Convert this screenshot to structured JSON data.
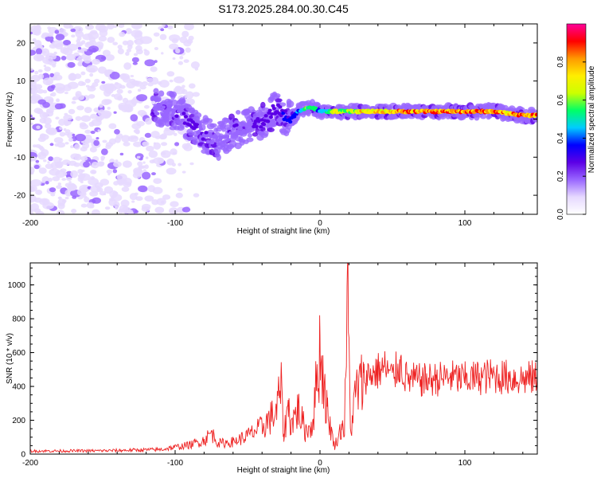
{
  "title": "S173.2025.284.00.30.C45",
  "chart_data": [
    {
      "type": "heatmap",
      "xlabel": "Height of straight line (km)",
      "ylabel": "Frequency (Hz)",
      "xlim": [
        -200,
        150
      ],
      "ylim": [
        -25,
        25
      ],
      "xticks": [
        -200,
        -100,
        0,
        100
      ],
      "yticks": [
        -20,
        -10,
        0,
        10,
        20
      ],
      "colorbar": {
        "label": "Normalized spectral amplitude",
        "range": [
          0,
          1
        ],
        "ticks": [
          "0.0",
          "0.2",
          "0.4",
          "0.6",
          "0.8"
        ],
        "colormap": [
          "#ffffff",
          "#e6d9ff",
          "#9966ff",
          "#5c00e6",
          "#0000ff",
          "#00ccff",
          "#00ff66",
          "#ccff00",
          "#ffee00",
          "#ff9900",
          "#ff0000",
          "#ff0099"
        ]
      },
      "ridge": {
        "x": [
          -115,
          -100,
          -90,
          -80,
          -70,
          -60,
          -50,
          -40,
          -30,
          -25,
          -20,
          -15,
          -10,
          -5,
          0,
          10,
          20,
          30,
          40,
          50,
          60,
          70,
          80,
          90,
          100,
          110,
          120,
          130,
          140,
          150
        ],
        "freq": [
          3,
          2,
          -1,
          -4,
          -6,
          -3,
          -2,
          -1,
          3,
          1,
          0,
          2,
          3,
          3,
          2,
          2,
          2,
          2,
          2,
          2,
          2,
          2,
          2,
          2,
          2,
          2,
          2,
          1.5,
          1,
          1
        ],
        "amplitude": [
          0.15,
          0.25,
          0.3,
          0.25,
          0.2,
          0.25,
          0.2,
          0.3,
          0.3,
          0.35,
          0.4,
          0.45,
          0.6,
          0.6,
          0.5,
          0.7,
          0.75,
          0.8,
          0.85,
          0.85,
          0.9,
          0.9,
          0.95,
          0.95,
          0.95,
          0.95,
          0.9,
          0.9,
          0.95,
          0.95
        ]
      },
      "noise_region": {
        "x_from": -200,
        "x_to": -95,
        "freq_range": [
          -25,
          25
        ],
        "amplitude": 0.1
      }
    },
    {
      "type": "line",
      "xlabel": "Height of straight line (km)",
      "ylabel": "SNR (10 * v/v)",
      "xlim": [
        -200,
        150
      ],
      "ylim": [
        0,
        1130
      ],
      "xticks": [
        -200,
        -100,
        0,
        100
      ],
      "yticks": [
        0,
        200,
        400,
        600,
        800,
        1000
      ],
      "color": "#ee2222",
      "series": [
        {
          "name": "SNR",
          "x": [
            -200,
            -150,
            -110,
            -90,
            -80,
            -75,
            -70,
            -60,
            -50,
            -40,
            -30,
            -27,
            -25,
            -22,
            -20,
            -15,
            -10,
            -5,
            -2,
            0,
            5,
            10,
            15,
            17,
            19,
            21,
            25,
            30,
            35,
            40,
            45,
            50,
            55,
            60,
            70,
            80,
            90,
            100,
            110,
            120,
            130,
            140,
            150
          ],
          "y": [
            20,
            22,
            30,
            60,
            90,
            140,
            70,
            80,
            120,
            180,
            280,
            450,
            120,
            320,
            200,
            300,
            150,
            200,
            520,
            700,
            280,
            50,
            180,
            180,
            1130,
            150,
            420,
            480,
            500,
            520,
            540,
            480,
            560,
            470,
            460,
            470,
            480,
            470,
            480,
            490,
            480,
            470,
            480
          ]
        }
      ]
    }
  ]
}
